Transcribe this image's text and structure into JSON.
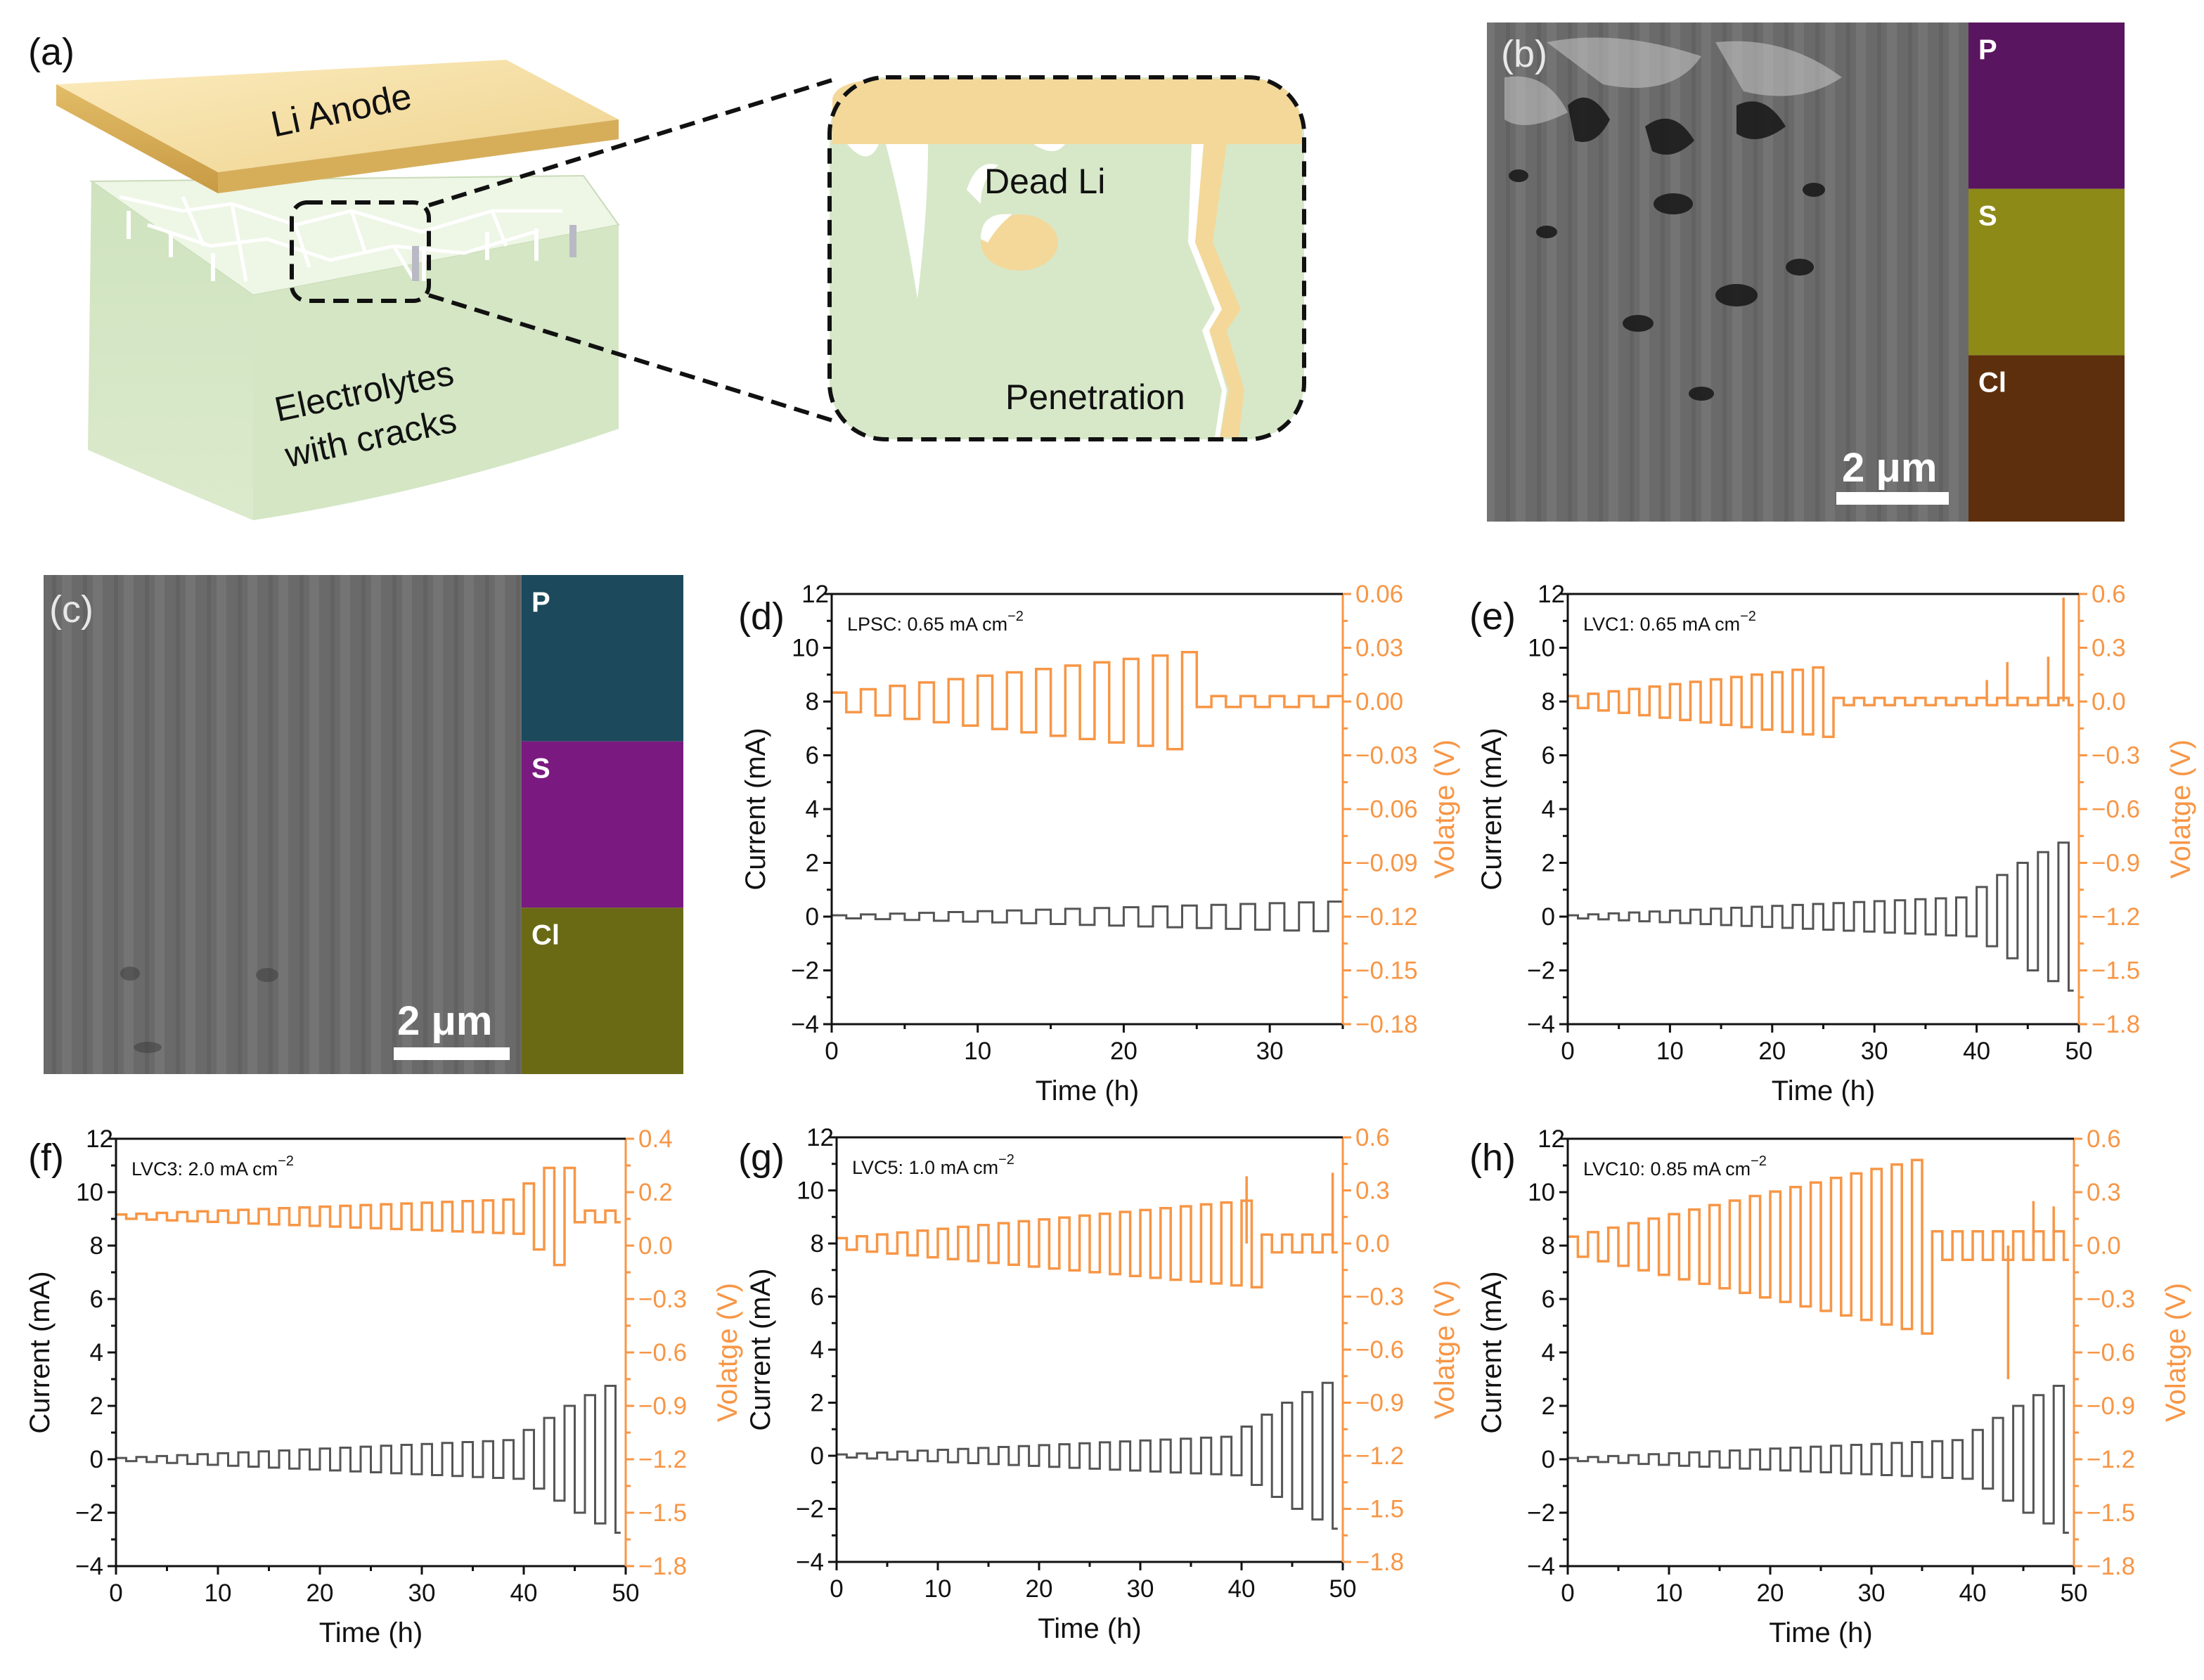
{
  "colors": {
    "current": "#555555",
    "voltage": "#f79646",
    "axis": "#111111",
    "li_anode": "#f3d89a",
    "electrolyte": "#d7e8c9",
    "sem_bg": "#6e6e6e"
  },
  "schematic": {
    "label": "(a)",
    "anode_text": "Li Anode",
    "electrolyte_line1": "Electrolytes",
    "electrolyte_line2": "with cracks",
    "zoom_dead_li": "Dead Li",
    "zoom_penetration": "Penetration"
  },
  "sem_b": {
    "label": "(b)",
    "scale_bar": "2 μm",
    "maps": [
      {
        "element": "P",
        "color": "#5a1560"
      },
      {
        "element": "S",
        "color": "#8d8a18"
      },
      {
        "element": "Cl",
        "color": "#5e2f0c"
      }
    ]
  },
  "sem_c": {
    "label": "(c)",
    "scale_bar": "2 μm",
    "maps": [
      {
        "element": "P",
        "color": "#1c4a5c"
      },
      {
        "element": "S",
        "color": "#7a1a80"
      },
      {
        "element": "Cl",
        "color": "#6a6a14"
      }
    ]
  },
  "chart_data": [
    {
      "id": "d",
      "label": "(d)",
      "type": "line",
      "annotation": "LPSC: 0.65 mA cm",
      "title": "",
      "xlabel": "Time (h)",
      "ylabel": "Current (mA)",
      "y2label": "Volatge (V)",
      "xlim": [
        0,
        35
      ],
      "ylim": [
        -4,
        12
      ],
      "y2lim": [
        -0.18,
        0.06
      ],
      "xticks": [
        0,
        10,
        20,
        30
      ],
      "yticks": [
        -4,
        -2,
        0,
        2,
        4,
        6,
        8,
        10,
        12
      ],
      "y2ticks": [
        "0.06",
        "0.03",
        "0.00",
        "−0.03",
        "−0.06",
        "−0.09",
        "−0.12",
        "−0.15",
        "−0.18"
      ],
      "series": [
        {
          "name": "Current",
          "axis": "left",
          "pattern": "square-wave",
          "step_hours": 1.0,
          "amp_start": 0.05,
          "amp_end": 0.65,
          "amp_jumps": [],
          "t_end": 35
        },
        {
          "name": "Voltage",
          "axis": "right",
          "pattern": "square-wave",
          "step_hours": 1.0,
          "v_start": 0.005,
          "v_end": 0.028,
          "fail_at": 24.5,
          "post_fail_amp": 0.003,
          "t_end": 35
        }
      ]
    },
    {
      "id": "e",
      "label": "(e)",
      "type": "line",
      "annotation": "LVC1: 0.65 mA cm",
      "title": "",
      "xlabel": "Time (h)",
      "ylabel": "Current (mA)",
      "y2label": "Volatge (V)",
      "xlim": [
        0,
        50
      ],
      "ylim": [
        -4,
        12
      ],
      "y2lim": [
        -1.8,
        0.6
      ],
      "xticks": [
        0,
        10,
        20,
        30,
        40,
        50
      ],
      "yticks": [
        -4,
        -2,
        0,
        2,
        4,
        6,
        8,
        10,
        12
      ],
      "y2ticks": [
        "0.6",
        "0.3",
        "0.0",
        "−0.3",
        "−0.6",
        "−0.9",
        "−1.2",
        "−1.5",
        "−1.8"
      ],
      "series": [
        {
          "name": "Current",
          "axis": "left",
          "pattern": "square-wave",
          "step_hours": 1.0,
          "amp_start": 0.05,
          "amp_end": 0.75,
          "amp_jumps": [
            [
              40,
              1.1
            ],
            [
              42,
              1.55
            ],
            [
              44,
              2.0
            ],
            [
              46,
              2.4
            ],
            [
              48,
              2.75
            ]
          ],
          "t_end": 49.5
        },
        {
          "name": "Voltage",
          "axis": "right",
          "pattern": "square-wave",
          "step_hours": 1.0,
          "v_start": 0.03,
          "v_end": 0.2,
          "fail_at": 25.5,
          "post_fail_amp": 0.02,
          "spikes": [
            [
              41,
              0.12
            ],
            [
              43,
              0.22
            ],
            [
              47,
              0.25
            ],
            [
              48.5,
              0.58
            ]
          ],
          "t_end": 49.5
        }
      ]
    },
    {
      "id": "f",
      "label": "(f)",
      "type": "line",
      "annotation": "LVC3: 2.0 mA cm",
      "title": "",
      "xlabel": "Time (h)",
      "ylabel": "Current (mA)",
      "y2label": "Volatge (V)",
      "xlim": [
        0,
        50
      ],
      "ylim": [
        -4,
        12
      ],
      "y2lim": [
        -1.8,
        0.4
      ],
      "xticks": [
        0,
        10,
        20,
        30,
        40,
        50
      ],
      "yticks": [
        -4,
        -2,
        0,
        2,
        4,
        6,
        8,
        10,
        12
      ],
      "y2ticks": [
        "0.4",
        "0.2",
        "0.0",
        "−0.3",
        "−0.6",
        "−0.9",
        "−1.2",
        "−1.5",
        "−1.8"
      ],
      "series": [
        {
          "name": "Current",
          "axis": "left",
          "pattern": "square-wave",
          "step_hours": 1.0,
          "amp_start": 0.05,
          "amp_end": 0.75,
          "amp_jumps": [
            [
              40,
              1.1
            ],
            [
              42,
              1.55
            ],
            [
              44,
              2.0
            ],
            [
              46,
              2.4
            ],
            [
              48,
              2.75
            ]
          ],
          "t_end": 49.5
        },
        {
          "name": "Voltage",
          "axis": "right",
          "pattern": "square-wave",
          "step_hours": 1.0,
          "v_start": 0.01,
          "v_end": 0.1,
          "growth_after": [
            [
              40,
              0.17
            ],
            [
              42,
              0.25
            ]
          ],
          "fail_at": 44.5,
          "post_fail_amp": 0.03,
          "t_end": 49.5
        }
      ]
    },
    {
      "id": "g",
      "label": "(g)",
      "type": "line",
      "annotation": "LVC5: 1.0 mA cm",
      "title": "",
      "xlabel": "Time (h)",
      "ylabel": "Current (mA)",
      "y2label": "Volatge (V)",
      "xlim": [
        0,
        50
      ],
      "ylim": [
        -4,
        12
      ],
      "y2lim": [
        -1.8,
        0.6
      ],
      "xticks": [
        0,
        10,
        20,
        30,
        40,
        50
      ],
      "yticks": [
        -4,
        -2,
        0,
        2,
        4,
        6,
        8,
        10,
        12
      ],
      "y2ticks": [
        "0.6",
        "0.3",
        "0.0",
        "−0.3",
        "−0.6",
        "−0.9",
        "−1.2",
        "−1.5",
        "−1.8"
      ],
      "series": [
        {
          "name": "Current",
          "axis": "left",
          "pattern": "square-wave",
          "step_hours": 1.0,
          "amp_start": 0.05,
          "amp_end": 0.75,
          "amp_jumps": [
            [
              40,
              1.1
            ],
            [
              42,
              1.55
            ],
            [
              44,
              2.0
            ],
            [
              46,
              2.4
            ],
            [
              48,
              2.75
            ]
          ],
          "t_end": 49.5
        },
        {
          "name": "Voltage",
          "axis": "right",
          "pattern": "square-wave",
          "step_hours": 1.0,
          "v_start": 0.03,
          "v_end": 0.25,
          "fail_at": 41.5,
          "post_fail_amp": 0.05,
          "spikes": [
            [
              40.5,
              0.38
            ],
            [
              49,
              0.4
            ]
          ],
          "t_end": 49.5
        }
      ]
    },
    {
      "id": "h",
      "label": "(h)",
      "type": "line",
      "annotation": "LVC10: 0.85 mA cm",
      "title": "",
      "xlabel": "Time (h)",
      "ylabel": "Current (mA)",
      "y2label": "Volatge (V)",
      "xlim": [
        0,
        50
      ],
      "ylim": [
        -4,
        12
      ],
      "y2lim": [
        -1.8,
        0.6
      ],
      "xticks": [
        0,
        10,
        20,
        30,
        40,
        50
      ],
      "yticks": [
        -4,
        -2,
        0,
        2,
        4,
        6,
        8,
        10,
        12
      ],
      "y2ticks": [
        "0.6",
        "0.3",
        "0.0",
        "−0.3",
        "−0.6",
        "−0.9",
        "−1.2",
        "−1.5",
        "−1.8"
      ],
      "series": [
        {
          "name": "Current",
          "axis": "left",
          "pattern": "square-wave",
          "step_hours": 1.0,
          "amp_start": 0.05,
          "amp_end": 0.75,
          "amp_jumps": [
            [
              40,
              1.1
            ],
            [
              42,
              1.55
            ],
            [
              44,
              2.0
            ],
            [
              46,
              2.4
            ],
            [
              48,
              2.75
            ]
          ],
          "t_end": 49.5
        },
        {
          "name": "Voltage",
          "axis": "right",
          "pattern": "square-wave",
          "step_hours": 1.0,
          "v_start": 0.05,
          "v_end": 0.5,
          "fail_at": 35.5,
          "post_fail_amp": 0.08,
          "spikes": [
            [
              43.5,
              -0.75
            ],
            [
              46,
              0.25
            ],
            [
              48,
              0.22
            ]
          ],
          "t_end": 49.5
        }
      ]
    }
  ]
}
